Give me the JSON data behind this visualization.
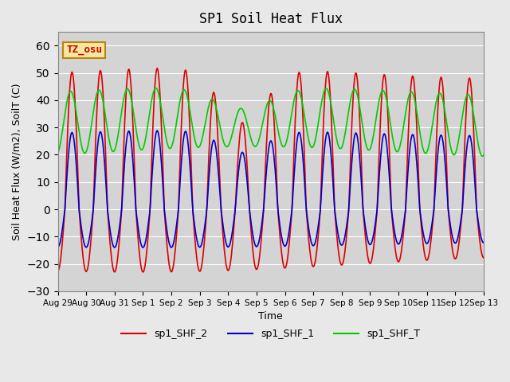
{
  "title": "SP1 Soil Heat Flux",
  "xlabel": "Time",
  "ylabel": "Soil Heat Flux (W/m2), SoilT (C)",
  "ylim": [
    -30,
    65
  ],
  "yticks": [
    -30,
    -20,
    -10,
    0,
    10,
    20,
    30,
    40,
    50,
    60
  ],
  "background_color": "#e8e8e8",
  "plot_bg_color": "#d4d4d4",
  "grid_color": "white",
  "tz_label": "TZ_osu",
  "tz_box_facecolor": "#f5e6a0",
  "tz_box_edgecolor": "#b8860b",
  "colors": {
    "sp1_SHF_2": "#dd0000",
    "sp1_SHF_1": "#0000cc",
    "sp1_SHF_T": "#00cc00"
  },
  "legend_labels": [
    "sp1_SHF_2",
    "sp1_SHF_1",
    "sp1_SHF_T"
  ],
  "x_tick_labels": [
    "Aug 29",
    "Aug 30",
    "Aug 31",
    "Sep 1",
    "Sep 2",
    "Sep 3",
    "Sep 4",
    "Sep 5",
    "Sep 6",
    "Sep 7",
    "Sep 8",
    "Sep 9",
    "Sep 10",
    "Sep 11",
    "Sep 12",
    "Sep 13"
  ],
  "num_days": 15,
  "points_per_day": 48,
  "shf2_amplitude_day": 55,
  "shf2_amplitude_night": -22,
  "shf1_amplitude_day": 31,
  "shf1_amplitude_night": -14,
  "shft_amplitude_day": 45,
  "shft_base": 22
}
